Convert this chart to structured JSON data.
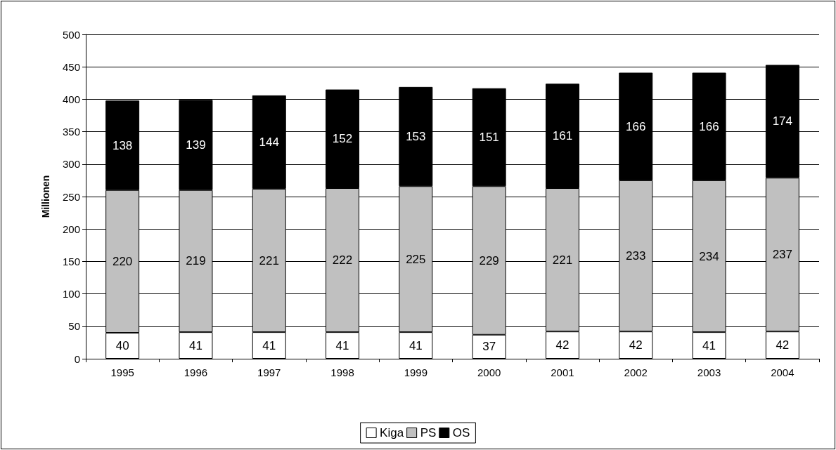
{
  "chart_data": {
    "type": "bar",
    "stacked": true,
    "ylabel": "Millionen",
    "categories": [
      "1995",
      "1996",
      "1997",
      "1998",
      "1999",
      "2000",
      "2001",
      "2002",
      "2003",
      "2004"
    ],
    "series": [
      {
        "name": "Kiga",
        "color": "#ffffff",
        "values": [
          40,
          41,
          41,
          41,
          41,
          37,
          42,
          42,
          41,
          42
        ]
      },
      {
        "name": "PS",
        "color": "#c0c0c0",
        "values": [
          220,
          219,
          221,
          222,
          225,
          229,
          221,
          233,
          234,
          237
        ]
      },
      {
        "name": "OS",
        "color": "#000000",
        "values": [
          138,
          139,
          144,
          152,
          153,
          151,
          161,
          166,
          166,
          174
        ]
      }
    ],
    "ylim": [
      0,
      500
    ],
    "yticks": [
      0,
      50,
      100,
      150,
      200,
      250,
      300,
      350,
      400,
      450,
      500
    ],
    "grid": "y",
    "legend": "bottom",
    "data_labels": true
  }
}
